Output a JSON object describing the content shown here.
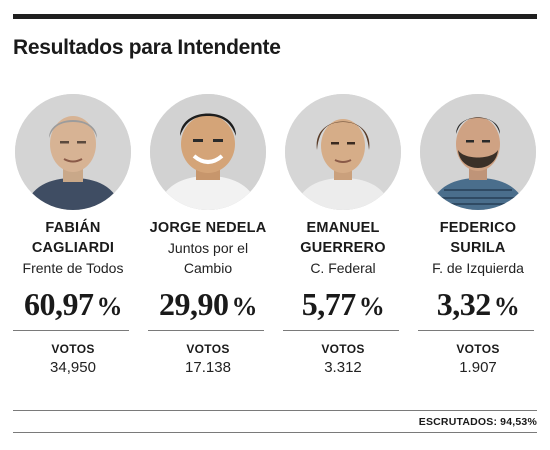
{
  "title": "Resultados para Intendente",
  "candidates": [
    {
      "name_line1": "FABIÁN",
      "name_line2": "CAGLIARDI",
      "party_line1": "Frente de Todos",
      "party_line2": "",
      "percentage": "60,97",
      "percent_sign": "%",
      "votes_label": "VOTOS",
      "votes": "34,950",
      "avatar_icon": "person-photo-gray-hair"
    },
    {
      "name_line1": "JORGE NEDELA",
      "name_line2": "",
      "party_line1": "Juntos por el",
      "party_line2": "Cambio",
      "percentage": "29,90",
      "percent_sign": "%",
      "votes_label": "VOTOS",
      "votes": "17.138",
      "avatar_icon": "person-photo-dark-hair"
    },
    {
      "name_line1": "EMANUEL",
      "name_line2": "GUERRERO",
      "party_line1": "C. Federal",
      "party_line2": "",
      "percentage": "5,77",
      "percent_sign": "%",
      "votes_label": "VOTOS",
      "votes": "3.312",
      "avatar_icon": "person-photo-brown-hair"
    },
    {
      "name_line1": "FEDERICO",
      "name_line2": "SURILA",
      "party_line1": "F. de Izquierda",
      "party_line2": "",
      "percentage": "3,32",
      "percent_sign": "%",
      "votes_label": "VOTOS",
      "votes": "1.907",
      "avatar_icon": "person-photo-beard"
    }
  ],
  "footer": {
    "escrutados_label": "ESCRUTADOS:",
    "escrutados_value": "94,53",
    "escrutados_sign": "%"
  }
}
